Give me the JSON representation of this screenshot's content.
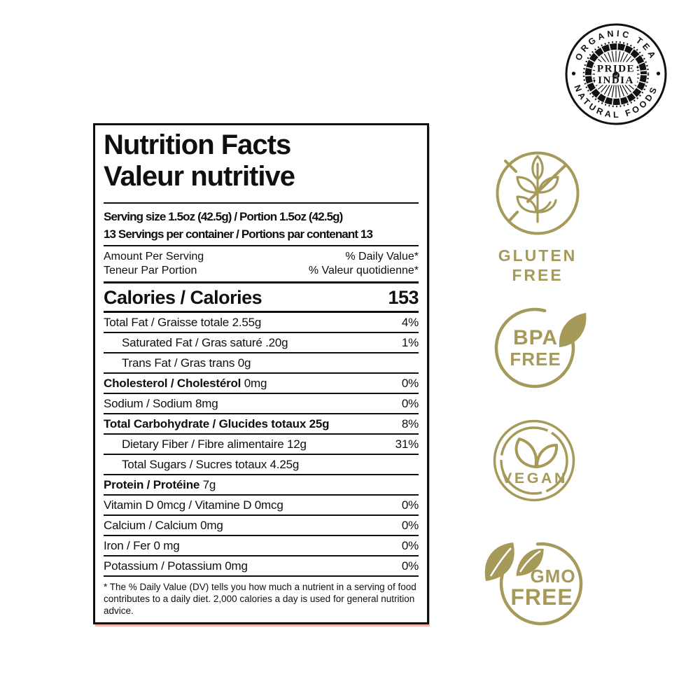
{
  "colors": {
    "gold": "#a69a5a",
    "ink": "#0f0f0f",
    "shadow_pink": "#f29a8c"
  },
  "logo": {
    "arc_top": "ORGANIC TEA",
    "arc_bottom": "NATURAL FOODS",
    "center_line1": "PRIDE",
    "center_of": "of",
    "center_line2": "INDIA"
  },
  "label": {
    "title_en": "Nutrition Facts",
    "title_fr": "Valeur nutritive",
    "serving_line1": "Serving size 1.5oz (42.5g) / Portion 1.5oz (42.5g)",
    "serving_line2": "13 Servings per container / Portions par contenant 13",
    "amount_en": "Amount Per Serving",
    "amount_fr": "Teneur Par Portion",
    "dv_en": "% Daily Value*",
    "dv_fr": "% Valeur quotidienne*",
    "calories_label": "Calories / Calories",
    "calories_value": "153",
    "rows": [
      {
        "name": "Total Fat / Graisse totale",
        "value": "2.55g",
        "dv": "4%",
        "bold": false,
        "indent": false
      },
      {
        "name": "Saturated Fat / Gras saturé",
        "value": ".20g",
        "dv": "1%",
        "bold": false,
        "indent": true
      },
      {
        "name": "Trans Fat / Gras trans",
        "value": "0g",
        "dv": "",
        "bold": false,
        "indent": true
      },
      {
        "name": "Cholesterol / Cholestérol",
        "value": "0mg",
        "dv": "0%",
        "bold": true,
        "indent": false
      },
      {
        "name": "Sodium / Sodium",
        "value": "8mg",
        "dv": "0%",
        "bold": false,
        "indent": false
      },
      {
        "name": "Total Carbohydrate / Glucides totaux",
        "value": "25g",
        "dv": "8%",
        "bold": true,
        "value_bold": true,
        "indent": false
      },
      {
        "name": "Dietary Fiber / Fibre alimentaire",
        "value": "12g",
        "dv": "31%",
        "bold": false,
        "indent": true
      },
      {
        "name": "Total Sugars / Sucres totaux",
        "value": "4.25g",
        "dv": "",
        "bold": false,
        "indent": true
      },
      {
        "name": "Protein / Protéine",
        "value": "7g",
        "dv": "",
        "bold": true,
        "indent": false
      },
      {
        "name": "Vitamin D 0mcg / Vitamine D 0mcg",
        "value": "",
        "dv": "0%",
        "bold": false,
        "indent": false
      },
      {
        "name": "Calcium / Calcium",
        "value": "0mg",
        "dv": "0%",
        "bold": false,
        "indent": false
      },
      {
        "name": "Iron / Fer",
        "value": "0 mg",
        "dv": "0%",
        "bold": false,
        "indent": false
      },
      {
        "name": "Potassium / Potassium",
        "value": "0mg",
        "dv": "0%",
        "bold": false,
        "indent": false
      }
    ],
    "footnote": "* The % Daily Value (DV) tells you how much a nutrient in a serving of food contributes to a daily diet. 2,000 calories a day is used for general nutrition advice."
  },
  "badges": [
    {
      "id": "gluten-free",
      "line1": "GLUTEN",
      "line2": "FREE"
    },
    {
      "id": "bpa-free",
      "line1": "BPA",
      "line2": "FREE"
    },
    {
      "id": "vegan",
      "line1": "VEGAN",
      "line2": ""
    },
    {
      "id": "gmo-free",
      "line1": "GMO",
      "line2": "FREE"
    }
  ]
}
